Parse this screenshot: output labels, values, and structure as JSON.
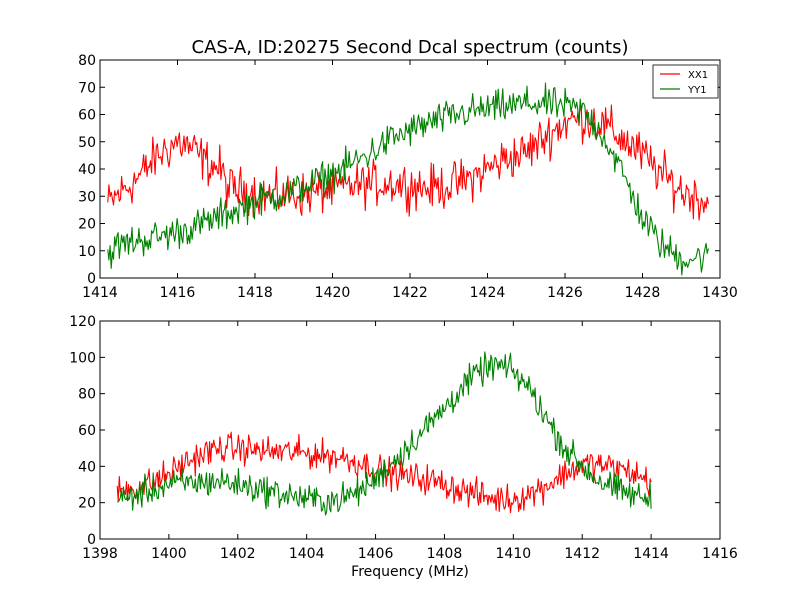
{
  "chart_data": [
    {
      "type": "line",
      "title": "CAS-A, ID:20275 Second Dcal spectrum (counts)",
      "xlabel": "",
      "ylabel": "",
      "xlim": [
        1414,
        1430
      ],
      "ylim": [
        0,
        80
      ],
      "xticks": [
        "1414",
        "1416",
        "1418",
        "1420",
        "1422",
        "1424",
        "1426",
        "1428",
        "1430"
      ],
      "yticks": [
        "0",
        "10",
        "20",
        "30",
        "40",
        "50",
        "60",
        "70",
        "80"
      ],
      "grid": false,
      "legend": {
        "placement": "top-right",
        "entries": [
          "XX1",
          "YY1"
        ]
      },
      "series": [
        {
          "name": "XX1",
          "color": "#ff0000",
          "x": [
            1414.2,
            1414.5,
            1415.0,
            1415.5,
            1416.0,
            1416.3,
            1416.8,
            1417.1,
            1417.3,
            1417.8,
            1418.5,
            1419.5,
            1420.5,
            1421.5,
            1422.5,
            1423.0,
            1423.5,
            1424.0,
            1424.5,
            1425.0,
            1425.5,
            1426.0,
            1426.5,
            1427.0,
            1427.5,
            1428.0,
            1428.5,
            1429.0,
            1429.7
          ],
          "values": [
            27,
            31,
            37,
            45,
            50,
            48,
            42,
            40,
            33,
            32,
            30,
            31,
            34,
            35,
            33,
            34,
            36,
            40,
            44,
            46,
            52,
            57,
            59,
            56,
            51,
            45,
            38,
            32,
            28
          ],
          "noise": 4
        },
        {
          "name": "YY1",
          "color": "#008000",
          "x": [
            1414.2,
            1414.5,
            1415.0,
            1415.5,
            1416.0,
            1416.5,
            1417.0,
            1417.5,
            1418.0,
            1418.5,
            1419.0,
            1419.5,
            1420.0,
            1420.5,
            1421.0,
            1421.5,
            1422.0,
            1422.5,
            1423.0,
            1423.5,
            1424.0,
            1424.5,
            1425.0,
            1425.5,
            1426.0,
            1426.5,
            1427.0,
            1427.5,
            1428.0,
            1428.5,
            1429.0,
            1429.7
          ],
          "values": [
            9,
            12,
            14,
            15,
            17,
            19,
            22,
            25,
            28,
            30,
            32,
            35,
            38,
            42,
            46,
            51,
            54,
            57,
            59,
            61,
            62,
            63,
            64,
            64,
            63,
            61,
            52,
            38,
            22,
            12,
            7,
            8
          ],
          "noise": 3
        }
      ]
    },
    {
      "type": "line",
      "title": "",
      "xlabel": "Frequency (MHz)",
      "ylabel": "",
      "xlim": [
        1398,
        1416
      ],
      "ylim": [
        0,
        120
      ],
      "xticks": [
        "1398",
        "1400",
        "1402",
        "1404",
        "1406",
        "1408",
        "1410",
        "1412",
        "1414",
        "1416"
      ],
      "yticks": [
        "0",
        "20",
        "40",
        "60",
        "80",
        "100",
        "120"
      ],
      "grid": false,
      "series": [
        {
          "name": "",
          "color": "#ff0000",
          "x": [
            1398.5,
            1399.0,
            1399.5,
            1400.0,
            1400.5,
            1401.0,
            1401.5,
            1402.0,
            1402.5,
            1403.0,
            1403.5,
            1404.0,
            1404.5,
            1405.0,
            1405.5,
            1406.0,
            1406.5,
            1407.0,
            1407.5,
            1408.0,
            1408.5,
            1409.0,
            1409.5,
            1410.0,
            1410.5,
            1411.0,
            1411.5,
            1412.0,
            1412.5,
            1413.0,
            1413.5,
            1414.0
          ],
          "values": [
            27,
            28,
            31,
            36,
            42,
            47,
            50,
            50,
            49,
            48,
            48,
            47,
            46,
            45,
            42,
            39,
            36,
            34,
            33,
            30,
            27,
            24,
            22,
            22,
            25,
            30,
            36,
            41,
            41,
            39,
            36,
            31
          ],
          "noise": 4
        },
        {
          "name": "",
          "color": "#008000",
          "x": [
            1398.5,
            1399.0,
            1399.5,
            1400.0,
            1400.5,
            1401.0,
            1401.5,
            1402.0,
            1402.5,
            1403.0,
            1403.5,
            1404.0,
            1404.5,
            1405.0,
            1405.5,
            1406.0,
            1406.5,
            1407.0,
            1407.5,
            1408.0,
            1408.5,
            1409.0,
            1409.5,
            1410.0,
            1410.5,
            1411.0,
            1411.5,
            1412.0,
            1412.5,
            1413.0,
            1413.5,
            1414.0
          ],
          "values": [
            21,
            24,
            27,
            30,
            31,
            31,
            32,
            30,
            28,
            26,
            24,
            22,
            21,
            22,
            26,
            33,
            42,
            52,
            62,
            72,
            83,
            92,
            96,
            92,
            82,
            65,
            50,
            40,
            32,
            27,
            24,
            22
          ],
          "noise": 4
        }
      ]
    }
  ]
}
